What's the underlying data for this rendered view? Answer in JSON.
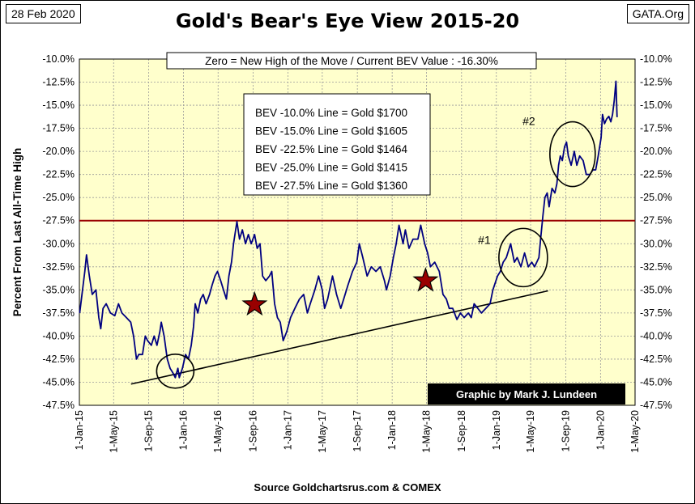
{
  "header": {
    "date_tag": "28 Feb 2020",
    "site_tag": "GATA.Org",
    "title": "Gold's Bear's Eye View 2015-20"
  },
  "footer": {
    "source": "Source Goldchartsrus.com & COMEX"
  },
  "colors": {
    "plot_bg": "#ffffcc",
    "series": "#000080",
    "ref_line": "#990000",
    "trend_line": "#000000",
    "star": "#990000",
    "credit_bg": "#000000",
    "credit_text": "#ffffff"
  },
  "chart_data": {
    "type": "line",
    "title": "Gold's Bear's Eye View 2015-20",
    "ylabel": "Percent From Last All-Time High",
    "xlabel": "",
    "ylim": [
      -47.5,
      -10.0
    ],
    "xlim": [
      "2015-01-01",
      "2020-05-01"
    ],
    "grid": true,
    "y_ticks": [
      "-10.0%",
      "-12.5%",
      "-15.0%",
      "-17.5%",
      "-20.0%",
      "-22.5%",
      "-25.0%",
      "-27.5%",
      "-30.0%",
      "-32.5%",
      "-35.0%",
      "-37.5%",
      "-40.0%",
      "-42.5%",
      "-45.0%",
      "-47.5%"
    ],
    "x_ticks": [
      "1-Jan-15",
      "1-May-15",
      "1-Sep-15",
      "1-Jan-16",
      "1-May-16",
      "1-Sep-16",
      "1-Jan-17",
      "1-May-17",
      "1-Sep-17",
      "1-Jan-18",
      "1-May-18",
      "1-Sep-18",
      "1-Jan-19",
      "1-May-19",
      "1-Sep-19",
      "1-Jan-20",
      "1-May-20"
    ],
    "info_banner": "Zero = New High of the Move / Current  BEV Value : -16.30%",
    "legend_lines": [
      "BEV -10.0% Line = Gold $1700",
      "BEV -15.0% Line = Gold $1605",
      "BEV -22.5% Line = Gold $1464",
      "BEV -25.0% Line = Gold $1415",
      "BEV -27.5% Line = Gold $1360"
    ],
    "credit": "Graphic by Mark J. Lundeen",
    "series": [
      {
        "points": [
          [
            "2015-01-02",
            -37.5
          ],
          [
            "2015-01-10",
            -35.5
          ],
          [
            "2015-01-20",
            -33.0
          ],
          [
            "2015-01-26",
            -31.2
          ],
          [
            "2015-02-05",
            -33.5
          ],
          [
            "2015-02-15",
            -35.5
          ],
          [
            "2015-02-28",
            -35.0
          ],
          [
            "2015-03-10",
            -38.0
          ],
          [
            "2015-03-17",
            -39.2
          ],
          [
            "2015-03-25",
            -37.0
          ],
          [
            "2015-04-05",
            -36.5
          ],
          [
            "2015-04-20",
            -37.5
          ],
          [
            "2015-05-05",
            -37.8
          ],
          [
            "2015-05-18",
            -36.5
          ],
          [
            "2015-05-30",
            -37.5
          ],
          [
            "2015-06-15",
            -38.0
          ],
          [
            "2015-06-30",
            -38.5
          ],
          [
            "2015-07-10",
            -40.0
          ],
          [
            "2015-07-20",
            -42.5
          ],
          [
            "2015-07-28",
            -42.0
          ],
          [
            "2015-08-10",
            -42.0
          ],
          [
            "2015-08-20",
            -40.0
          ],
          [
            "2015-08-28",
            -40.5
          ],
          [
            "2015-09-10",
            -41.0
          ],
          [
            "2015-09-20",
            -40.0
          ],
          [
            "2015-09-30",
            -41.0
          ],
          [
            "2015-10-10",
            -39.5
          ],
          [
            "2015-10-15",
            -38.5
          ],
          [
            "2015-10-25",
            -40.0
          ],
          [
            "2015-11-05",
            -42.5
          ],
          [
            "2015-11-15",
            -43.5
          ],
          [
            "2015-11-25",
            -44.0
          ],
          [
            "2015-12-03",
            -44.5
          ],
          [
            "2015-12-12",
            -43.5
          ],
          [
            "2015-12-17",
            -44.5
          ],
          [
            "2015-12-28",
            -43.5
          ],
          [
            "2016-01-08",
            -42.0
          ],
          [
            "2016-01-18",
            -42.5
          ],
          [
            "2016-01-28",
            -41.0
          ],
          [
            "2016-02-05",
            -39.0
          ],
          [
            "2016-02-11",
            -36.5
          ],
          [
            "2016-02-20",
            -37.5
          ],
          [
            "2016-03-01",
            -36.0
          ],
          [
            "2016-03-10",
            -35.5
          ],
          [
            "2016-03-20",
            -36.5
          ],
          [
            "2016-04-01",
            -35.5
          ],
          [
            "2016-04-10",
            -34.5
          ],
          [
            "2016-04-20",
            -33.5
          ],
          [
            "2016-04-29",
            -33.0
          ],
          [
            "2016-05-10",
            -34.0
          ],
          [
            "2016-05-20",
            -35.0
          ],
          [
            "2016-05-30",
            -36.0
          ],
          [
            "2016-06-08",
            -33.5
          ],
          [
            "2016-06-17",
            -32.0
          ],
          [
            "2016-06-24",
            -30.0
          ],
          [
            "2016-07-06",
            -27.6
          ],
          [
            "2016-07-15",
            -29.5
          ],
          [
            "2016-07-25",
            -28.5
          ],
          [
            "2016-08-05",
            -30.0
          ],
          [
            "2016-08-15",
            -29.0
          ],
          [
            "2016-08-25",
            -30.0
          ],
          [
            "2016-09-06",
            -29.0
          ],
          [
            "2016-09-15",
            -30.5
          ],
          [
            "2016-09-25",
            -30.0
          ],
          [
            "2016-10-04",
            -33.5
          ],
          [
            "2016-10-15",
            -34.0
          ],
          [
            "2016-10-28",
            -33.5
          ],
          [
            "2016-11-05",
            -33.0
          ],
          [
            "2016-11-15",
            -36.5
          ],
          [
            "2016-11-25",
            -38.0
          ],
          [
            "2016-12-05",
            -38.5
          ],
          [
            "2016-12-15",
            -40.5
          ],
          [
            "2016-12-28",
            -39.5
          ],
          [
            "2017-01-10",
            -38.0
          ],
          [
            "2017-01-25",
            -37.0
          ],
          [
            "2017-02-10",
            -36.0
          ],
          [
            "2017-02-25",
            -35.5
          ],
          [
            "2017-03-10",
            -37.5
          ],
          [
            "2017-03-20",
            -36.5
          ],
          [
            "2017-04-05",
            -35.0
          ],
          [
            "2017-04-18",
            -33.5
          ],
          [
            "2017-05-01",
            -35.0
          ],
          [
            "2017-05-09",
            -37.0
          ],
          [
            "2017-05-20",
            -36.0
          ],
          [
            "2017-06-06",
            -33.5
          ],
          [
            "2017-06-20",
            -35.5
          ],
          [
            "2017-07-05",
            -37.0
          ],
          [
            "2017-07-15",
            -36.0
          ],
          [
            "2017-07-30",
            -34.5
          ],
          [
            "2017-08-15",
            -33.0
          ],
          [
            "2017-08-30",
            -32.0
          ],
          [
            "2017-09-08",
            -30.0
          ],
          [
            "2017-09-20",
            -31.5
          ],
          [
            "2017-10-05",
            -33.5
          ],
          [
            "2017-10-20",
            -32.5
          ],
          [
            "2017-11-05",
            -33.0
          ],
          [
            "2017-11-20",
            -32.5
          ],
          [
            "2017-12-05",
            -34.0
          ],
          [
            "2017-12-12",
            -35.0
          ],
          [
            "2017-12-25",
            -33.5
          ],
          [
            "2018-01-05",
            -31.5
          ],
          [
            "2018-01-15",
            -30.0
          ],
          [
            "2018-01-25",
            -28.0
          ],
          [
            "2018-02-08",
            -30.0
          ],
          [
            "2018-02-16",
            -28.5
          ],
          [
            "2018-03-01",
            -30.5
          ],
          [
            "2018-03-15",
            -29.5
          ],
          [
            "2018-04-01",
            -29.5
          ],
          [
            "2018-04-11",
            -28.0
          ],
          [
            "2018-04-25",
            -30.0
          ],
          [
            "2018-05-05",
            -31.0
          ],
          [
            "2018-05-15",
            -32.5
          ],
          [
            "2018-05-30",
            -32.0
          ],
          [
            "2018-06-15",
            -33.0
          ],
          [
            "2018-06-28",
            -35.5
          ],
          [
            "2018-07-10",
            -36.0
          ],
          [
            "2018-07-20",
            -37.0
          ],
          [
            "2018-08-01",
            -37.0
          ],
          [
            "2018-08-16",
            -38.2
          ],
          [
            "2018-08-28",
            -37.5
          ],
          [
            "2018-09-10",
            -38.0
          ],
          [
            "2018-09-25",
            -37.5
          ],
          [
            "2018-10-05",
            -38.0
          ],
          [
            "2018-10-15",
            -36.5
          ],
          [
            "2018-10-28",
            -37.0
          ],
          [
            "2018-11-10",
            -37.5
          ],
          [
            "2018-11-25",
            -37.0
          ],
          [
            "2018-12-10",
            -36.5
          ],
          [
            "2018-12-20",
            -35.0
          ],
          [
            "2019-01-05",
            -33.5
          ],
          [
            "2019-01-15",
            -33.0
          ],
          [
            "2019-01-25",
            -32.0
          ],
          [
            "2019-02-05",
            -31.5
          ],
          [
            "2019-02-20",
            -30.0
          ],
          [
            "2019-03-05",
            -32.0
          ],
          [
            "2019-03-15",
            -31.5
          ],
          [
            "2019-03-28",
            -32.5
          ],
          [
            "2019-04-10",
            -31.0
          ],
          [
            "2019-04-23",
            -32.5
          ],
          [
            "2019-05-05",
            -32.0
          ],
          [
            "2019-05-15",
            -32.5
          ],
          [
            "2019-05-30",
            -31.5
          ],
          [
            "2019-06-05",
            -29.5
          ],
          [
            "2019-06-13",
            -27.0
          ],
          [
            "2019-06-20",
            -25.0
          ],
          [
            "2019-06-28",
            -24.5
          ],
          [
            "2019-07-05",
            -26.0
          ],
          [
            "2019-07-15",
            -24.0
          ],
          [
            "2019-07-25",
            -24.5
          ],
          [
            "2019-08-01",
            -23.5
          ],
          [
            "2019-08-07",
            -21.5
          ],
          [
            "2019-08-13",
            -20.5
          ],
          [
            "2019-08-20",
            -21.0
          ],
          [
            "2019-08-28",
            -19.5
          ],
          [
            "2019-09-04",
            -19.0
          ],
          [
            "2019-09-10",
            -20.5
          ],
          [
            "2019-09-20",
            -21.5
          ],
          [
            "2019-10-01",
            -20.0
          ],
          [
            "2019-10-10",
            -21.5
          ],
          [
            "2019-10-20",
            -20.5
          ],
          [
            "2019-11-01",
            -21.0
          ],
          [
            "2019-11-12",
            -22.5
          ],
          [
            "2019-11-25",
            -22.5
          ],
          [
            "2019-12-05",
            -22.0
          ],
          [
            "2019-12-15",
            -22.0
          ],
          [
            "2019-12-24",
            -20.5
          ],
          [
            "2020-01-03",
            -18.5
          ],
          [
            "2020-01-08",
            -16.0
          ],
          [
            "2020-01-15",
            -17.0
          ],
          [
            "2020-01-22",
            -16.5
          ],
          [
            "2020-01-30",
            -16.2
          ],
          [
            "2020-02-06",
            -16.8
          ],
          [
            "2020-02-12",
            -16.0
          ],
          [
            "2020-02-18",
            -14.5
          ],
          [
            "2020-02-24",
            -12.4
          ],
          [
            "2020-02-27",
            -15.5
          ],
          [
            "2020-02-28",
            -16.3
          ]
        ]
      }
    ],
    "reference_line": {
      "y": -27.5
    },
    "trend_line": {
      "from": [
        "2015-07-01",
        -45.2
      ],
      "to": [
        "2019-07-01",
        -35.1
      ]
    },
    "annotations": [
      {
        "label": "#1",
        "x": "2018-11-20",
        "y": -29.6
      },
      {
        "label": "#2",
        "x": "2019-04-25",
        "y": -16.7
      }
    ],
    "circles": [
      {
        "x": "2015-12-03",
        "y": -43.8
      },
      {
        "x": "2019-04-05",
        "y": -31.5
      },
      {
        "x": "2019-09-25",
        "y": -20.3
      }
    ],
    "stars": [
      {
        "x": "2016-09-06",
        "y": -36.6
      },
      {
        "x": "2018-04-28",
        "y": -34.0
      }
    ]
  }
}
